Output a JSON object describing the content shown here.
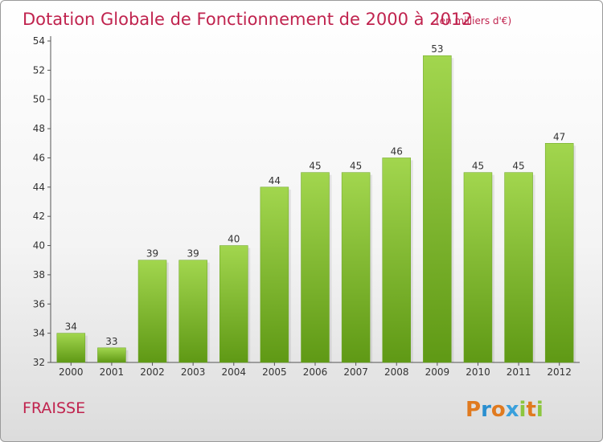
{
  "chart_data": {
    "type": "bar",
    "title": "Dotation Globale de Fonctionnement de 2000 à 2012",
    "subtitle": "(en milliers d'€)",
    "categories": [
      "2000",
      "2001",
      "2002",
      "2003",
      "2004",
      "2005",
      "2006",
      "2007",
      "2008",
      "2009",
      "2010",
      "2011",
      "2012"
    ],
    "values": [
      34,
      33,
      39,
      39,
      40,
      44,
      45,
      45,
      46,
      53,
      45,
      45,
      47
    ],
    "ylim": [
      32,
      54
    ],
    "yticks": [
      32,
      34,
      36,
      38,
      40,
      42,
      44,
      46,
      48,
      50,
      52,
      54
    ],
    "xlabel": "",
    "ylabel": "",
    "grid": false,
    "bar_color": "#7db72f"
  },
  "commune": "FRAISSE",
  "logo": {
    "letters": [
      "P",
      "r",
      "o",
      "x",
      "i",
      "t",
      "i"
    ],
    "colors": [
      "#e07a1f",
      "#2a8fd0",
      "#e07a1f",
      "#3aa0dc",
      "#8cc63f",
      "#e07a1f",
      "#8cc63f"
    ]
  }
}
